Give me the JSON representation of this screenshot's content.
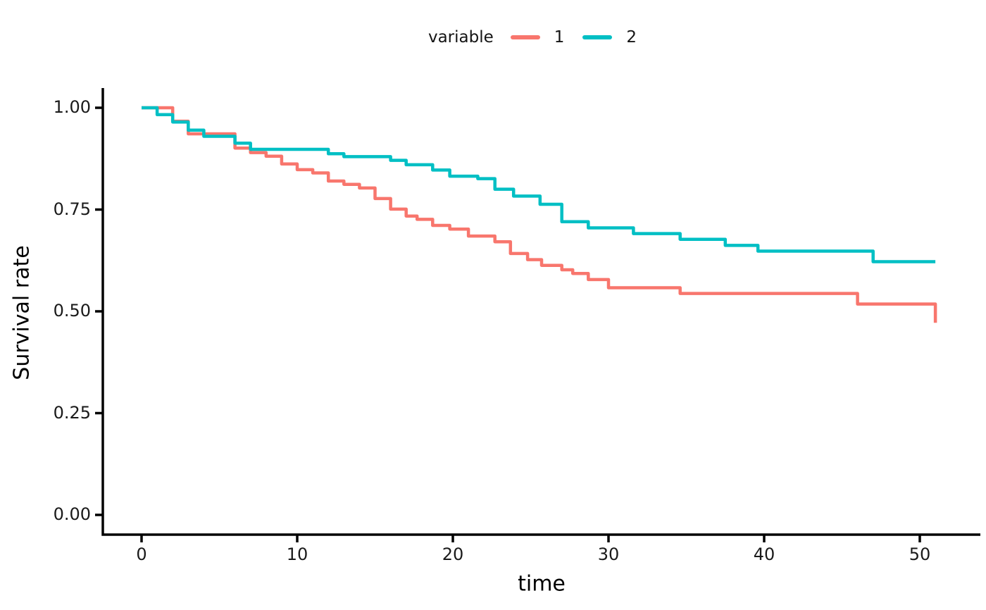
{
  "legend": {
    "title": "variable",
    "position": "top",
    "items": [
      {
        "label": "1",
        "color": "#F8766D"
      },
      {
        "label": "2",
        "color": "#00BFC4"
      }
    ]
  },
  "axes": {
    "x_title": "time",
    "y_title": "Survival rate",
    "x_tick_labels": [
      "0",
      "10",
      "20",
      "30",
      "40",
      "50"
    ],
    "y_tick_labels": [
      "0.00",
      "0.25",
      "0.50",
      "0.75",
      "1.00"
    ],
    "axis_color": "#000000",
    "text_color": "#1a1a1a"
  },
  "chart_data": {
    "type": "line",
    "subtype": "kaplan-meier-step",
    "title": "",
    "xlabel": "time",
    "ylabel": "Survival rate",
    "legend_title": "variable",
    "legend_position": "top",
    "grid": false,
    "xlim": [
      0,
      51
    ],
    "ylim": [
      0,
      1
    ],
    "x_ticks": [
      0,
      10,
      20,
      30,
      40,
      50
    ],
    "y_ticks": [
      0,
      0.25,
      0.5,
      0.75,
      1
    ],
    "series": [
      {
        "name": "1",
        "color": "#F8766D",
        "points": [
          [
            0,
            1.0
          ],
          [
            2,
            0.967
          ],
          [
            3,
            0.936
          ],
          [
            6,
            0.901
          ],
          [
            7,
            0.89
          ],
          [
            8,
            0.881
          ],
          [
            9,
            0.862
          ],
          [
            10,
            0.848
          ],
          [
            11,
            0.84
          ],
          [
            12,
            0.82
          ],
          [
            13,
            0.812
          ],
          [
            14,
            0.803
          ],
          [
            15,
            0.777
          ],
          [
            16,
            0.751
          ],
          [
            17,
            0.734
          ],
          [
            17.7,
            0.726
          ],
          [
            18.7,
            0.711
          ],
          [
            19.8,
            0.702
          ],
          [
            21,
            0.685
          ],
          [
            22.7,
            0.671
          ],
          [
            23.7,
            0.642
          ],
          [
            24.8,
            0.627
          ],
          [
            25.7,
            0.613
          ],
          [
            27,
            0.602
          ],
          [
            27.7,
            0.593
          ],
          [
            28.7,
            0.578
          ],
          [
            30,
            0.558
          ],
          [
            34.6,
            0.544
          ],
          [
            46,
            0.518
          ],
          [
            51,
            0.472
          ]
        ]
      },
      {
        "name": "2",
        "color": "#00BFC4",
        "points": [
          [
            0,
            1.0
          ],
          [
            1,
            0.983
          ],
          [
            2,
            0.965
          ],
          [
            3,
            0.945
          ],
          [
            4,
            0.93
          ],
          [
            6,
            0.913
          ],
          [
            7,
            0.898
          ],
          [
            12,
            0.887
          ],
          [
            13,
            0.88
          ],
          [
            16,
            0.871
          ],
          [
            17,
            0.86
          ],
          [
            18.7,
            0.847
          ],
          [
            19.8,
            0.832
          ],
          [
            21.6,
            0.826
          ],
          [
            22.7,
            0.8
          ],
          [
            23.9,
            0.783
          ],
          [
            25.6,
            0.763
          ],
          [
            27,
            0.72
          ],
          [
            28.7,
            0.705
          ],
          [
            31.6,
            0.691
          ],
          [
            34.6,
            0.677
          ],
          [
            37.5,
            0.662
          ],
          [
            39.6,
            0.648
          ],
          [
            47,
            0.622
          ],
          [
            51,
            0.622
          ]
        ]
      }
    ]
  }
}
